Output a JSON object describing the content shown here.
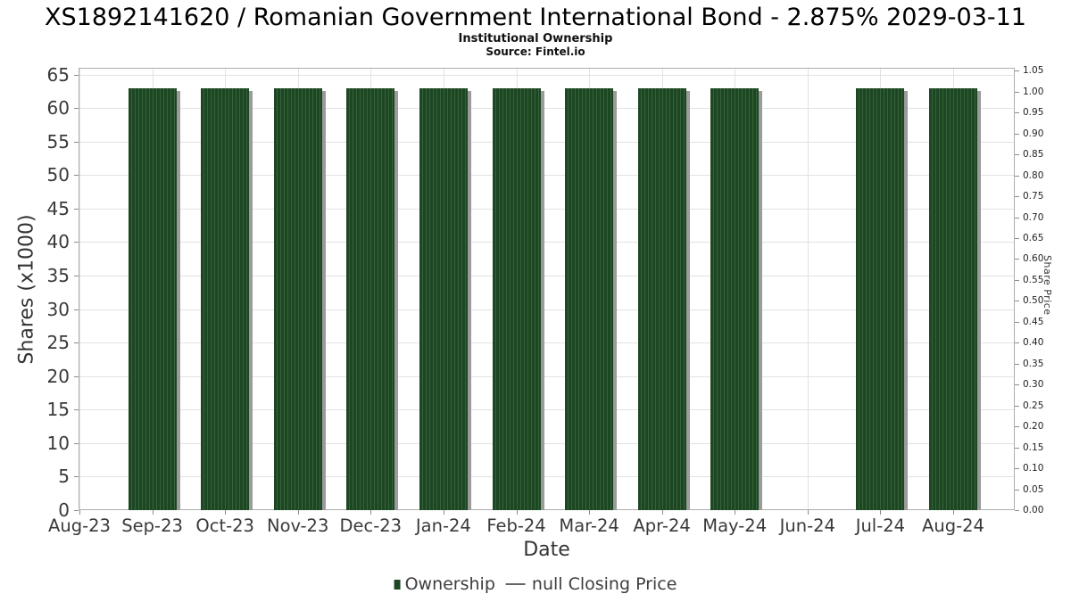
{
  "title": "XS1892141620 / Romanian Government International Bond - 2.875% 2029-03-11",
  "subtitle": "Institutional Ownership",
  "source": "Source: Fintel.io",
  "chart_data": {
    "type": "bar",
    "categories": [
      "Aug-23",
      "Sep-23",
      "Oct-23",
      "Nov-23",
      "Dec-23",
      "Jan-24",
      "Feb-24",
      "Mar-24",
      "Apr-24",
      "May-24",
      "Jun-24",
      "Jul-24",
      "Aug-24"
    ],
    "series": [
      {
        "name": "Ownership",
        "axis": "left",
        "type": "bar",
        "values": [
          null,
          63,
          63,
          63,
          63,
          63,
          63,
          63,
          63,
          63,
          null,
          63,
          63
        ]
      },
      {
        "name": "null Closing Price",
        "axis": "right",
        "type": "line",
        "values": []
      }
    ],
    "xlabel": "Date",
    "ylabel_left": "Shares (x1000)",
    "ylabel_right": "Share Price",
    "ylim_left": [
      0,
      66
    ],
    "yticks_left": [
      0,
      5,
      10,
      15,
      20,
      25,
      30,
      35,
      40,
      45,
      50,
      55,
      60,
      65
    ],
    "ylim_right": [
      0,
      1.057
    ],
    "yticks_right": [
      0.0,
      0.05,
      0.1,
      0.15,
      0.2,
      0.25,
      0.3,
      0.35,
      0.4,
      0.45,
      0.5,
      0.55,
      0.6,
      0.65,
      0.7,
      0.75,
      0.8,
      0.85,
      0.9,
      0.95,
      1.0,
      1.05
    ],
    "right_tick_decimals": 2,
    "grid": true,
    "legend_position": "bottom"
  },
  "colors": {
    "bar": "#1d4722",
    "bar_stripe": "#35613b",
    "bar_shadow": "#9b9b9b",
    "grid": "#e2e2e2",
    "axis_border": "#adadad",
    "tick": "#8c8c8c",
    "text": "#333333",
    "legend_text": "#3d3d3d",
    "legend_line": "#666666"
  }
}
